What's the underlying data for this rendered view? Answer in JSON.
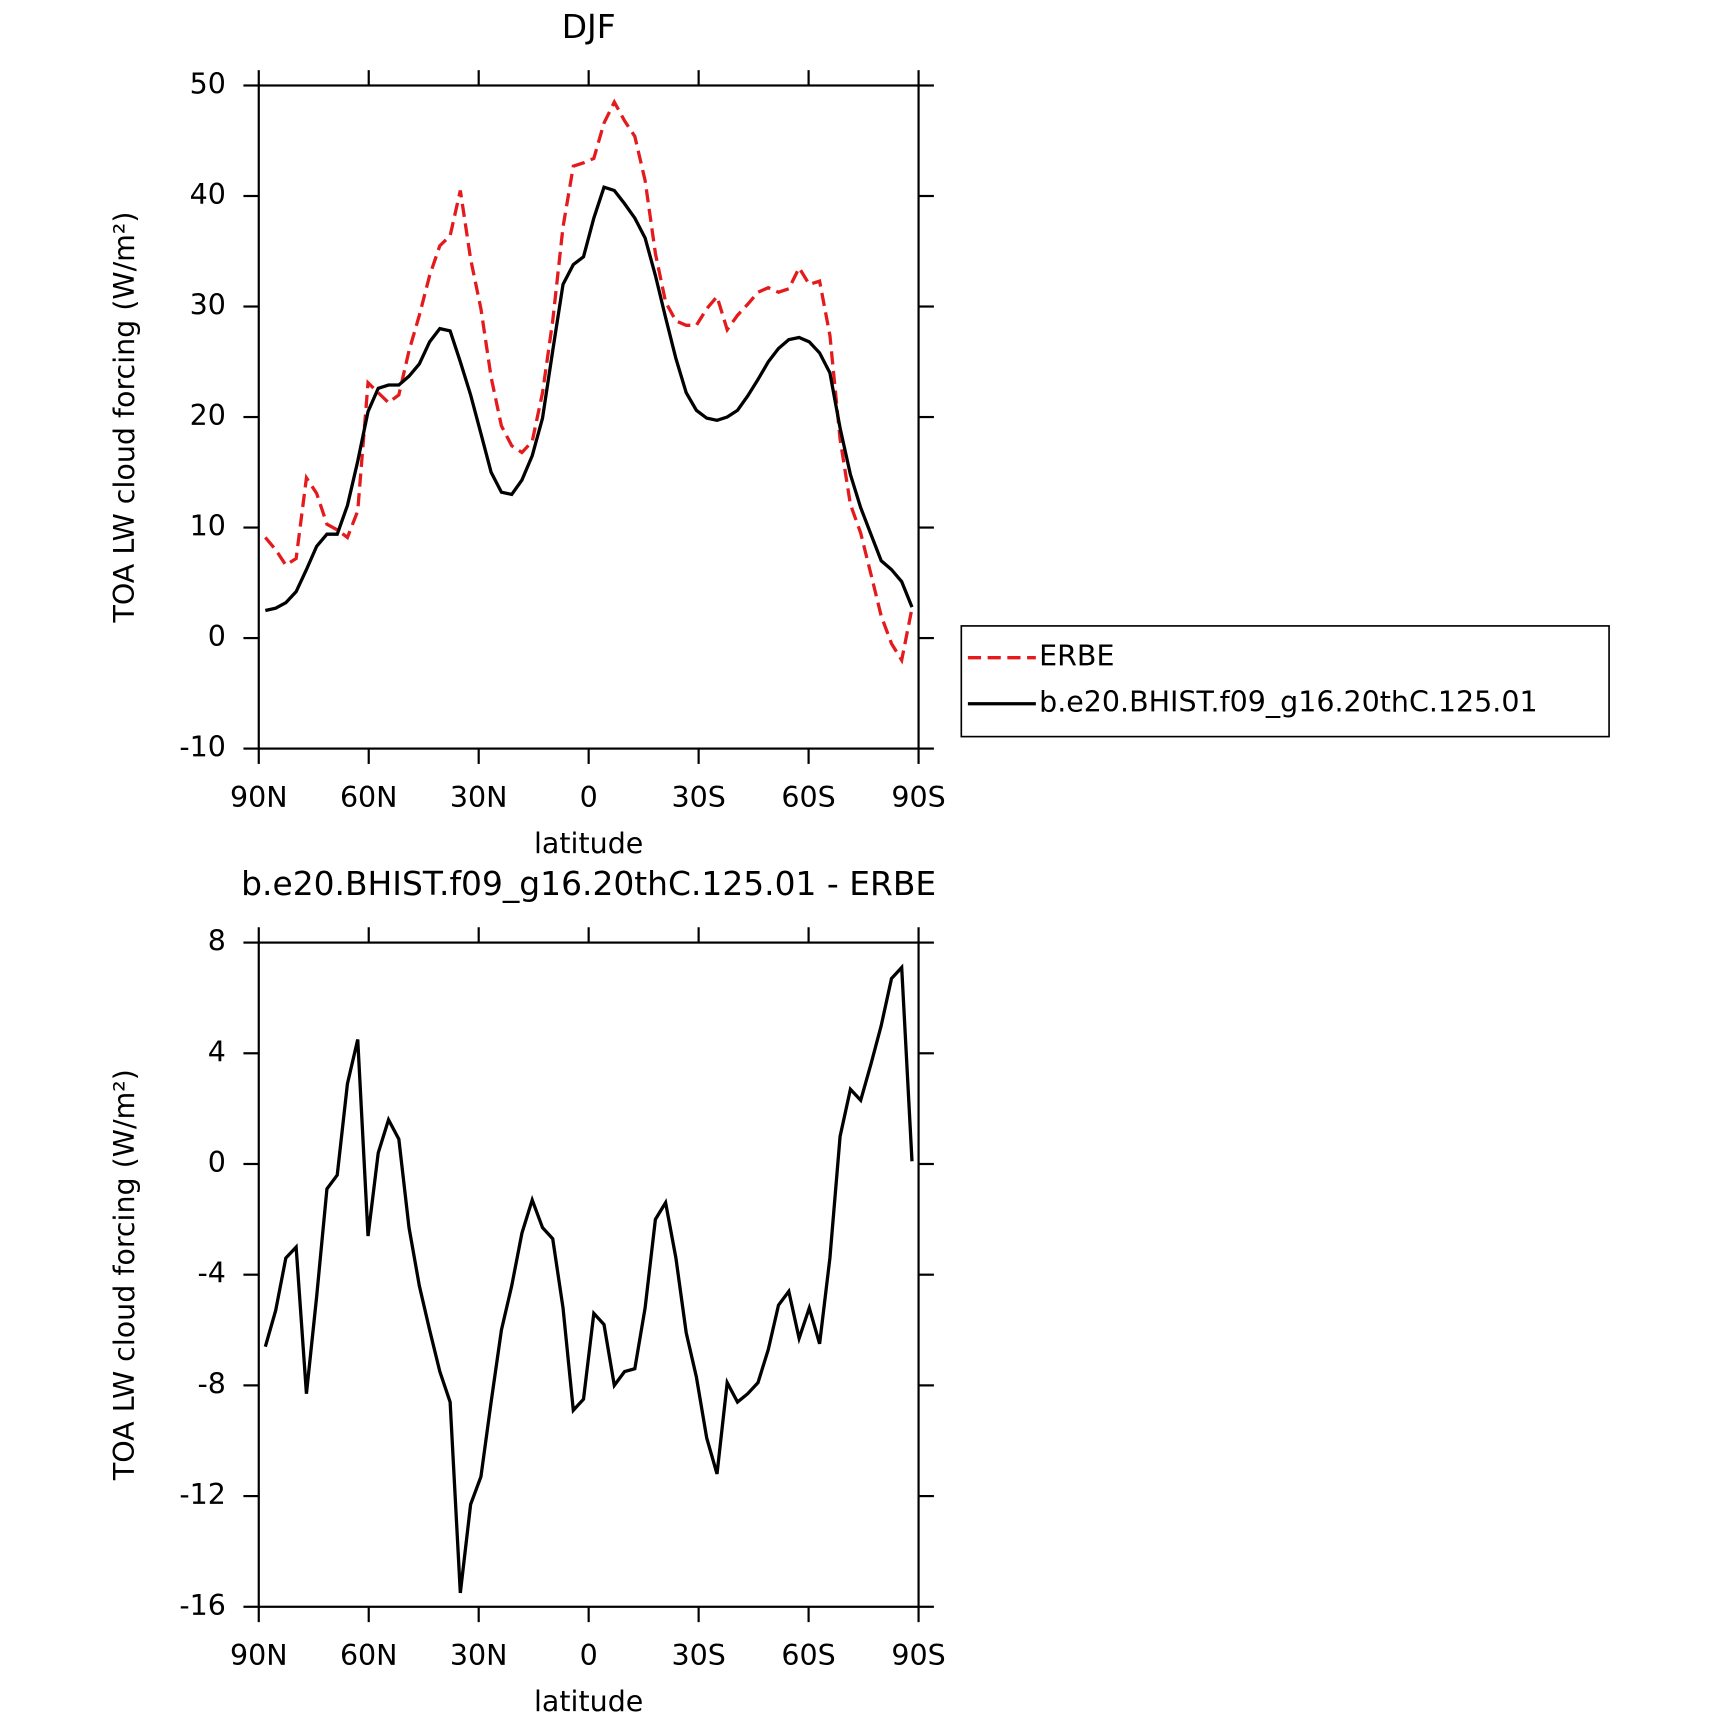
{
  "chart_data": [
    {
      "type": "line",
      "title": "DJF",
      "xlabel": "latitude",
      "ylabel": "TOA LW cloud forcing (W/m²)",
      "x": [
        88.2,
        85.4,
        82.6,
        79.8,
        77,
        74.2,
        71.4,
        68.6,
        65.8,
        63,
        60.2,
        57.4,
        54.6,
        51.8,
        49,
        46.2,
        43.4,
        40.6,
        37.8,
        35,
        32.2,
        29.4,
        26.6,
        23.8,
        21,
        18.2,
        15.4,
        12.6,
        9.8,
        7,
        4.2,
        1.4,
        -1.4,
        -4.2,
        -7,
        -9.8,
        -12.6,
        -15.4,
        -18.2,
        -21,
        -23.8,
        -26.6,
        -29.4,
        -32.2,
        -35,
        -37.8,
        -40.6,
        -43.4,
        -46.2,
        -49,
        -51.8,
        -54.6,
        -57.4,
        -60.2,
        -63,
        -65.8,
        -68.6,
        -71.4,
        -74.2,
        -77,
        -79.8,
        -82.6,
        -85.4,
        -88.2
      ],
      "xlim": [
        90,
        -90
      ],
      "xticks": [
        {
          "value": 90,
          "label": "90N"
        },
        {
          "value": 60,
          "label": "60N"
        },
        {
          "value": 30,
          "label": "30N"
        },
        0,
        {
          "value": -30,
          "label": "30S"
        },
        {
          "value": -60,
          "label": "60S"
        },
        {
          "value": -90,
          "label": "90S"
        }
      ],
      "ylim": [
        -10,
        50
      ],
      "yticks": [
        -10,
        0,
        10,
        20,
        30,
        40,
        50
      ],
      "legend": "outside right",
      "series": [
        {
          "name": "ERBE",
          "color": "#e41a1c",
          "linestyle": "dashed",
          "values": [
            9.1,
            8.0,
            6.6,
            7.2,
            14.5,
            13.1,
            10.3,
            9.8,
            9.1,
            11.5,
            23.1,
            22.2,
            21.3,
            22.0,
            26.0,
            29.2,
            32.8,
            35.5,
            36.4,
            40.5,
            34.3,
            29.8,
            23.6,
            19.2,
            17.4,
            16.8,
            17.8,
            22.2,
            28.7,
            37.2,
            42.7,
            43.0,
            43.4,
            46.6,
            48.5,
            46.8,
            45.4,
            41.4,
            34.8,
            30.4,
            28.7,
            28.3,
            28.3,
            29.8,
            30.9,
            27.9,
            29.2,
            30.2,
            31.3,
            31.7,
            31.3,
            31.6,
            33.5,
            32.0,
            32.3,
            27.4,
            18.0,
            12.1,
            9.5,
            5.8,
            2.0,
            -0.5,
            -2.0,
            2.7
          ]
        },
        {
          "name": "b.e20.BHIST.f09_g16.20thC.125.01",
          "color": "#000000",
          "linestyle": "solid",
          "values": [
            2.5,
            2.7,
            3.2,
            4.2,
            6.2,
            8.3,
            9.4,
            9.4,
            12.0,
            16.0,
            20.5,
            22.6,
            22.9,
            22.9,
            23.7,
            24.8,
            26.8,
            28.0,
            27.8,
            25.0,
            22.0,
            18.5,
            15.0,
            13.2,
            13.0,
            14.3,
            16.5,
            19.9,
            26.0,
            32.0,
            33.8,
            34.5,
            38.0,
            40.8,
            40.5,
            39.3,
            38.0,
            36.2,
            32.8,
            29.0,
            25.3,
            22.2,
            20.6,
            19.9,
            19.7,
            20.0,
            20.6,
            21.9,
            23.4,
            25.0,
            26.2,
            27.0,
            27.2,
            26.8,
            25.8,
            24.0,
            19.0,
            14.8,
            11.8,
            9.4,
            7.0,
            6.2,
            5.1,
            2.8
          ]
        }
      ]
    },
    {
      "type": "line",
      "title": "b.e20.BHIST.f09_g16.20thC.125.01 - ERBE",
      "xlabel": "latitude",
      "ylabel": "TOA LW cloud forcing (W/m²)",
      "x": [
        88.2,
        85.4,
        82.6,
        79.8,
        77,
        74.2,
        71.4,
        68.6,
        65.8,
        63,
        60.2,
        57.4,
        54.6,
        51.8,
        49,
        46.2,
        43.4,
        40.6,
        37.8,
        35,
        32.2,
        29.4,
        26.6,
        23.8,
        21,
        18.2,
        15.4,
        12.6,
        9.8,
        7,
        4.2,
        1.4,
        -1.4,
        -4.2,
        -7,
        -9.8,
        -12.6,
        -15.4,
        -18.2,
        -21,
        -23.8,
        -26.6,
        -29.4,
        -32.2,
        -35,
        -37.8,
        -40.6,
        -43.4,
        -46.2,
        -49,
        -51.8,
        -54.6,
        -57.4,
        -60.2,
        -63,
        -65.8,
        -68.6,
        -71.4,
        -74.2,
        -77,
        -79.8,
        -82.6,
        -85.4,
        -88.2
      ],
      "xlim": [
        90,
        -90
      ],
      "xticks": [
        {
          "value": 90,
          "label": "90N"
        },
        {
          "value": 60,
          "label": "60N"
        },
        {
          "value": 30,
          "label": "30N"
        },
        0,
        {
          "value": -30,
          "label": "30S"
        },
        {
          "value": -60,
          "label": "60S"
        },
        {
          "value": -90,
          "label": "90S"
        }
      ],
      "ylim": [
        -16,
        8
      ],
      "yticks": [
        -16,
        -12,
        -8,
        -4,
        0,
        4,
        8
      ],
      "series": [
        {
          "color": "#000000",
          "linestyle": "solid",
          "values": [
            -6.6,
            -5.3,
            -3.4,
            -3.0,
            -8.3,
            -4.8,
            -0.9,
            -0.4,
            2.9,
            4.5,
            -2.6,
            0.4,
            1.6,
            0.9,
            -2.3,
            -4.4,
            -6.0,
            -7.5,
            -8.6,
            -15.5,
            -12.3,
            -11.3,
            -8.6,
            -6.0,
            -4.4,
            -2.5,
            -1.3,
            -2.3,
            -2.7,
            -5.2,
            -8.9,
            -8.5,
            -5.4,
            -5.8,
            -8.0,
            -7.5,
            -7.4,
            -5.2,
            -2.0,
            -1.4,
            -3.4,
            -6.1,
            -7.7,
            -9.9,
            -11.2,
            -7.9,
            -8.6,
            -8.3,
            -7.9,
            -6.7,
            -5.1,
            -4.6,
            -6.3,
            -5.2,
            -6.5,
            -3.4,
            1.0,
            2.7,
            2.3,
            3.6,
            5.0,
            6.7,
            7.1,
            0.1
          ]
        }
      ]
    }
  ]
}
